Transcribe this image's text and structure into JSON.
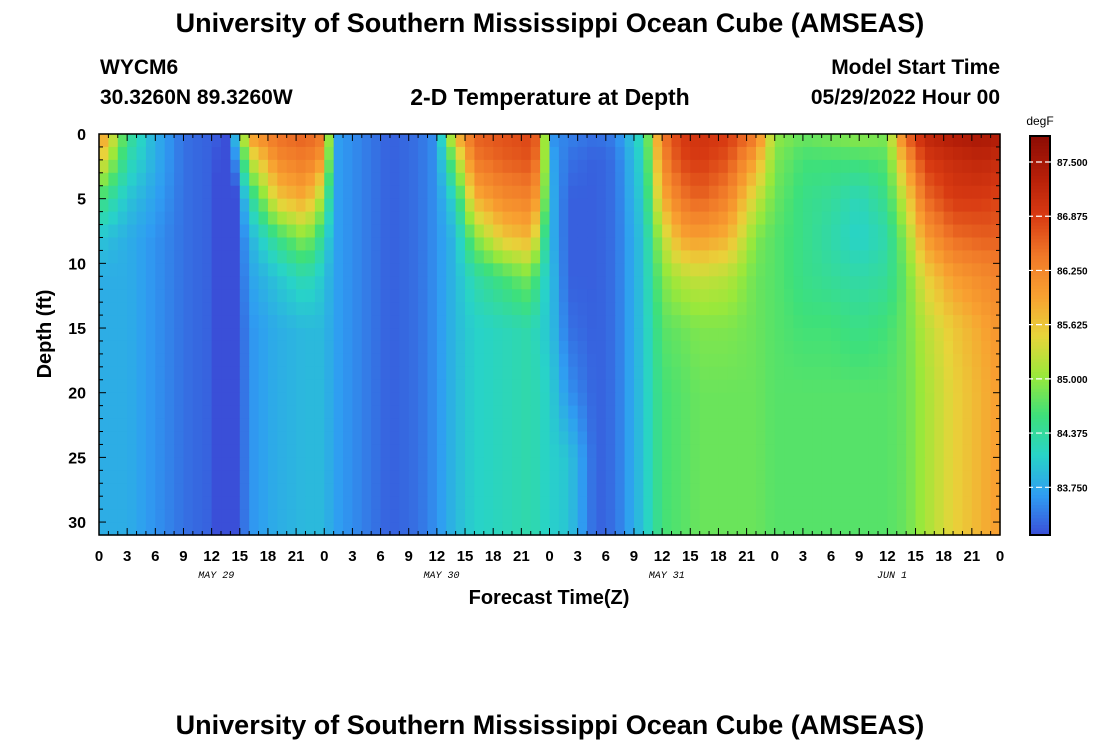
{
  "page": {
    "title": "University of Southern Mississippi Ocean Cube (AMSEAS)",
    "station_id": "WYCM6",
    "station_coords": "30.3260N  89.3260W",
    "plot_title": "2-D Temperature at Depth",
    "model_start_label": "Model Start Time",
    "model_start_value": "05/29/2022 Hour 00",
    "footer_title": "University of Southern Mississippi Ocean Cube (AMSEAS)"
  },
  "chart_data": {
    "type": "heatmap",
    "title": "2-D Temperature at Depth",
    "xlabel": "Forecast Time(Z)",
    "ylabel": "Depth (ft)",
    "x_ticks": [
      "0",
      "3",
      "6",
      "9",
      "12",
      "15",
      "18",
      "21",
      "0",
      "3",
      "6",
      "9",
      "12",
      "15",
      "18",
      "21",
      "0",
      "3",
      "6",
      "9",
      "12",
      "15",
      "18",
      "21",
      "0",
      "3",
      "6",
      "9",
      "12",
      "15",
      "18",
      "21",
      "0"
    ],
    "day_labels": [
      "MAY 29",
      "MAY 30",
      "MAY 31",
      "JUN 1"
    ],
    "xlim_hours": [
      0,
      96
    ],
    "ylim_ft": [
      0,
      31
    ],
    "y_ticks": [
      0,
      5,
      10,
      15,
      20,
      25,
      30
    ],
    "colorbar": {
      "unit": "degF",
      "ticks": [
        "87.500",
        "86.875",
        "86.250",
        "85.625",
        "85.000",
        "84.375",
        "83.750"
      ],
      "min": 83.2,
      "max": 87.8
    },
    "color_stops": [
      "#3a4fd8",
      "#2f9df2",
      "#28d3c8",
      "#3ee07a",
      "#9be83a",
      "#e8d43a",
      "#f8a030",
      "#f07828",
      "#d83a12",
      "#b41e08",
      "#8c0c04"
    ],
    "grid_hours": [
      0,
      3,
      6,
      9,
      12,
      14,
      16,
      19,
      22,
      24,
      25,
      28,
      31,
      34,
      36,
      38,
      40,
      43,
      46,
      47,
      48,
      50,
      53,
      55,
      58,
      60,
      62,
      64,
      67,
      70,
      72,
      75,
      78,
      81,
      84,
      86,
      88,
      91,
      94,
      96
    ],
    "grid_depths": [
      0,
      2,
      5,
      8,
      11,
      15,
      20,
      25,
      30
    ],
    "values": [
      [
        86.2,
        84.5,
        83.8,
        83.4,
        83.3,
        83.2,
        86.0,
        86.5,
        86.6,
        86.4,
        83.7,
        83.5,
        83.3,
        83.4,
        83.6,
        85.8,
        86.6,
        86.7,
        86.8,
        86.5,
        83.6,
        83.5,
        83.4,
        83.5,
        84.3,
        86.4,
        86.9,
        87.0,
        86.9,
        86.4,
        85.0,
        84.8,
        84.9,
        85.0,
        84.9,
        86.6,
        87.2,
        87.4,
        87.5,
        87.4
      ],
      [
        85.6,
        84.3,
        83.8,
        83.4,
        83.3,
        83.0,
        85.2,
        86.2,
        86.4,
        86.0,
        83.7,
        83.5,
        83.3,
        83.4,
        83.6,
        85.0,
        86.4,
        86.6,
        86.7,
        86.3,
        83.8,
        83.4,
        83.3,
        83.4,
        84.2,
        86.2,
        86.8,
        86.9,
        86.7,
        85.9,
        84.9,
        84.6,
        84.6,
        84.6,
        84.7,
        86.0,
        86.9,
        87.1,
        87.2,
        87.1
      ],
      [
        84.6,
        84.0,
        83.7,
        83.4,
        83.3,
        82.8,
        84.2,
        85.6,
        85.9,
        85.0,
        83.7,
        83.5,
        83.3,
        83.4,
        83.6,
        84.2,
        85.8,
        86.2,
        86.3,
        85.8,
        83.9,
        83.3,
        83.3,
        83.4,
        84.1,
        85.8,
        86.4,
        86.6,
        86.3,
        85.3,
        84.8,
        84.5,
        84.4,
        84.2,
        84.5,
        85.4,
        86.5,
        86.9,
        86.9,
        86.8
      ],
      [
        84.0,
        83.8,
        83.6,
        83.4,
        83.3,
        82.9,
        83.8,
        84.5,
        85.0,
        84.3,
        83.7,
        83.5,
        83.3,
        83.4,
        83.6,
        83.9,
        84.9,
        85.6,
        85.8,
        85.0,
        83.9,
        83.3,
        83.3,
        83.4,
        84.0,
        85.2,
        85.9,
        86.0,
        85.8,
        84.9,
        84.7,
        84.5,
        84.3,
        84.1,
        84.3,
        85.0,
        86.0,
        86.5,
        86.6,
        86.6
      ],
      [
        83.8,
        83.8,
        83.6,
        83.4,
        83.3,
        82.9,
        83.7,
        84.0,
        84.3,
        84.0,
        83.7,
        83.5,
        83.3,
        83.4,
        83.6,
        83.9,
        84.3,
        84.6,
        84.9,
        84.3,
        84.0,
        83.3,
        83.3,
        83.4,
        84.0,
        84.9,
        85.2,
        85.3,
        85.2,
        84.8,
        84.7,
        84.5,
        84.4,
        84.3,
        84.4,
        84.8,
        85.5,
        86.0,
        86.2,
        86.3
      ],
      [
        83.8,
        83.8,
        83.6,
        83.4,
        83.3,
        82.9,
        83.6,
        83.8,
        83.9,
        83.9,
        83.7,
        83.5,
        83.3,
        83.4,
        83.6,
        83.9,
        84.1,
        84.2,
        84.3,
        84.1,
        84.0,
        83.4,
        83.3,
        83.4,
        84.0,
        84.7,
        84.8,
        84.9,
        84.9,
        84.8,
        84.7,
        84.6,
        84.6,
        84.5,
        84.6,
        84.8,
        85.2,
        85.6,
        85.9,
        86.1
      ],
      [
        83.8,
        83.8,
        83.6,
        83.4,
        83.3,
        82.9,
        83.6,
        83.8,
        83.9,
        83.9,
        83.7,
        83.5,
        83.3,
        83.4,
        83.6,
        83.9,
        84.1,
        84.2,
        84.3,
        84.2,
        84.1,
        83.6,
        83.3,
        83.4,
        84.0,
        84.6,
        84.7,
        84.8,
        84.8,
        84.8,
        84.7,
        84.7,
        84.7,
        84.7,
        84.7,
        84.8,
        85.1,
        85.5,
        85.8,
        86.0
      ],
      [
        83.8,
        83.8,
        83.6,
        83.4,
        83.3,
        82.9,
        83.6,
        83.8,
        83.9,
        83.9,
        83.7,
        83.5,
        83.3,
        83.4,
        83.6,
        83.9,
        84.1,
        84.2,
        84.3,
        84.2,
        84.1,
        84.0,
        83.3,
        83.4,
        84.0,
        84.6,
        84.7,
        84.8,
        84.8,
        84.8,
        84.7,
        84.7,
        84.7,
        84.7,
        84.7,
        84.8,
        85.1,
        85.5,
        85.8,
        86.0
      ],
      [
        83.8,
        83.8,
        83.6,
        83.4,
        83.3,
        82.9,
        83.6,
        83.8,
        83.9,
        83.9,
        83.7,
        83.5,
        83.3,
        83.4,
        83.6,
        83.9,
        84.1,
        84.2,
        84.3,
        84.2,
        84.1,
        84.0,
        83.3,
        83.4,
        84.0,
        84.6,
        84.7,
        84.8,
        84.8,
        84.8,
        84.7,
        84.7,
        84.7,
        84.7,
        84.7,
        84.8,
        85.1,
        85.5,
        85.8,
        86.0
      ]
    ]
  }
}
